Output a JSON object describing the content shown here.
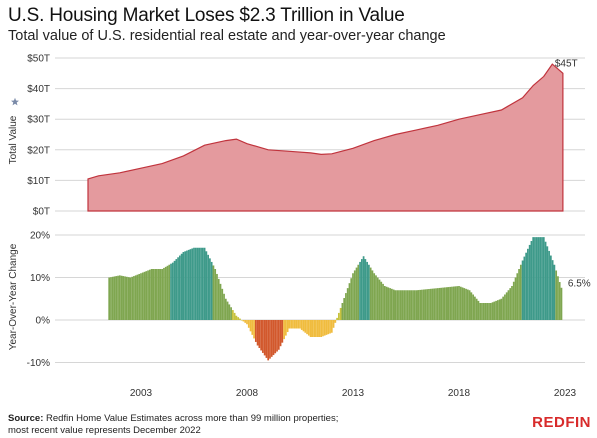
{
  "header": {
    "title": "U.S. Housing Market Loses $2.3 Trillion in Value",
    "subtitle": "Total value of U.S. residential real estate and year-over-year change"
  },
  "footer": {
    "source_label": "Source:",
    "source_text": " Redfin Home Value Estimates across more than 99 million properties;",
    "source_text2": "most recent value represents December 2022",
    "logo": "REDFIN"
  },
  "colors": {
    "area_fill": "#e49a9e",
    "area_stroke": "#c0343d",
    "yoy_green": "#7fa650",
    "yoy_teal": "#3e9a8a",
    "yoy_yellow": "#f0bc3e",
    "yoy_orange": "#d2582c",
    "grid": "#d6d6d6",
    "star": "#7a8aa8"
  },
  "chart_data": [
    {
      "type": "area",
      "ylabel": "Total Value",
      "ylim": [
        0,
        50
      ],
      "yticks": [
        0,
        10,
        20,
        30,
        40,
        50
      ],
      "ytick_labels": [
        "$0T",
        "$10T",
        "$20T",
        "$30T",
        "$40T",
        "$50T"
      ],
      "end_label": "$45T",
      "x": [
        2000.5,
        2001,
        2002,
        2003,
        2004,
        2005,
        2006,
        2007,
        2007.5,
        2008,
        2008.5,
        2009,
        2010,
        2011,
        2011.5,
        2012,
        2013,
        2014,
        2015,
        2016,
        2017,
        2018,
        2019,
        2020,
        2021,
        2021.5,
        2022,
        2022.4,
        2022.9
      ],
      "values": [
        10.5,
        11.5,
        12.5,
        14,
        15.5,
        18,
        21.5,
        23,
        23.5,
        22,
        21,
        20,
        19.5,
        19,
        18.5,
        18.7,
        20.5,
        23,
        25,
        26.5,
        28,
        30,
        31.5,
        33,
        37,
        41,
        44,
        48,
        45
      ]
    },
    {
      "type": "bar",
      "ylabel": "Year-Over-Year Change",
      "ylim": [
        -12,
        22
      ],
      "yticks": [
        -10,
        0,
        10,
        20
      ],
      "ytick_labels": [
        "-10%",
        "0%",
        "10%",
        "20%"
      ],
      "end_label": "6.5%",
      "x_ticks": [
        2003,
        2008,
        2013,
        2018,
        2023
      ],
      "x_tick_labels": [
        "2003",
        "2008",
        "2013",
        "2018",
        "2023"
      ],
      "x": [
        2001.5,
        2002,
        2002.5,
        2003,
        2003.5,
        2004,
        2004.5,
        2005,
        2005.5,
        2006,
        2006.5,
        2007,
        2007.5,
        2008,
        2008.5,
        2009,
        2009.5,
        2010,
        2010.5,
        2011,
        2011.5,
        2012,
        2012.5,
        2013,
        2013.5,
        2014,
        2014.5,
        2015,
        2016,
        2017,
        2018,
        2018.5,
        2019,
        2019.5,
        2020,
        2020.5,
        2021,
        2021.5,
        2022,
        2022.5,
        2022.9
      ],
      "values": [
        10,
        10.5,
        10,
        11,
        12,
        12,
        13.5,
        16,
        17,
        17,
        12,
        5,
        1,
        -1,
        -6,
        -9.5,
        -7,
        -2,
        -2,
        -4,
        -4,
        -3,
        4,
        11,
        15,
        11,
        8,
        7,
        7,
        7.5,
        8,
        7,
        4,
        4,
        5,
        8,
        14,
        19.5,
        19.5,
        13,
        6.5
      ]
    }
  ]
}
